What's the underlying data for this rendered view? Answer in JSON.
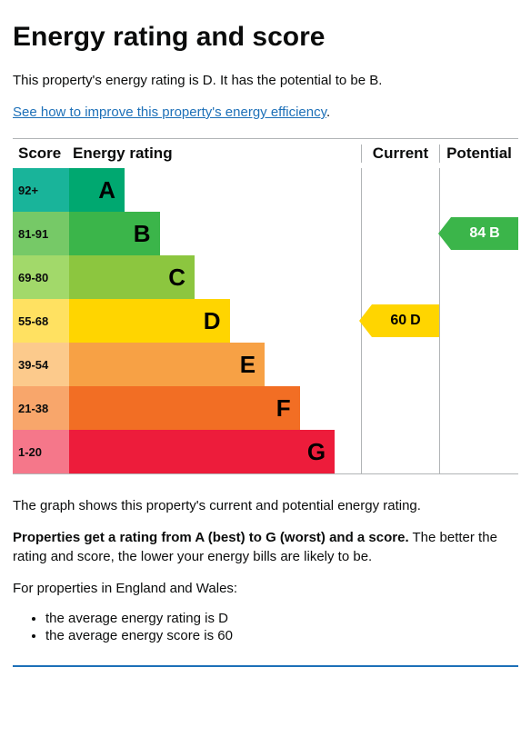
{
  "title": "Energy rating and score",
  "intro": "This property's energy rating is D. It has the potential to be B.",
  "link_text": "See how to improve this property's energy efficiency",
  "headers": {
    "score": "Score",
    "rating": "Energy rating",
    "current": "Current",
    "potential": "Potential"
  },
  "bands": [
    {
      "range": "92+",
      "letter": "A",
      "score_bg": "#19b49a",
      "bar_bg": "#00a870",
      "width_pct": 19,
      "text_color": "#000"
    },
    {
      "range": "81-91",
      "letter": "B",
      "score_bg": "#76c967",
      "bar_bg": "#3bb54a",
      "width_pct": 31,
      "text_color": "#000"
    },
    {
      "range": "69-80",
      "letter": "C",
      "score_bg": "#a2d96a",
      "bar_bg": "#8cc63f",
      "width_pct": 43,
      "text_color": "#000"
    },
    {
      "range": "55-68",
      "letter": "D",
      "score_bg": "#ffe161",
      "bar_bg": "#ffd500",
      "width_pct": 55,
      "text_color": "#000"
    },
    {
      "range": "39-54",
      "letter": "E",
      "score_bg": "#fcca8c",
      "bar_bg": "#f7a145",
      "width_pct": 67,
      "text_color": "#000"
    },
    {
      "range": "21-38",
      "letter": "F",
      "score_bg": "#f8a66b",
      "bar_bg": "#f26e24",
      "width_pct": 79,
      "text_color": "#000"
    },
    {
      "range": "1-20",
      "letter": "G",
      "score_bg": "#f5778a",
      "bar_bg": "#ed1c3b",
      "width_pct": 91,
      "text_color": "#000"
    }
  ],
  "current": {
    "score": "60",
    "letter": "D",
    "band_index": 3,
    "bg": "#ffd500"
  },
  "potential": {
    "score": "84",
    "letter": "B",
    "band_index": 1,
    "bg": "#3bb54a",
    "text_color": "#fff"
  },
  "below_text_1": "The graph shows this property's current and potential energy rating.",
  "below_bold": "Properties get a rating from A (best) to G (worst) and a score.",
  "below_rest": " The better the rating and score, the lower your energy bills are likely to be.",
  "england_wales_intro": "For properties in England and Wales:",
  "bullets": [
    "the average energy rating is D",
    "the average energy score is 60"
  ]
}
